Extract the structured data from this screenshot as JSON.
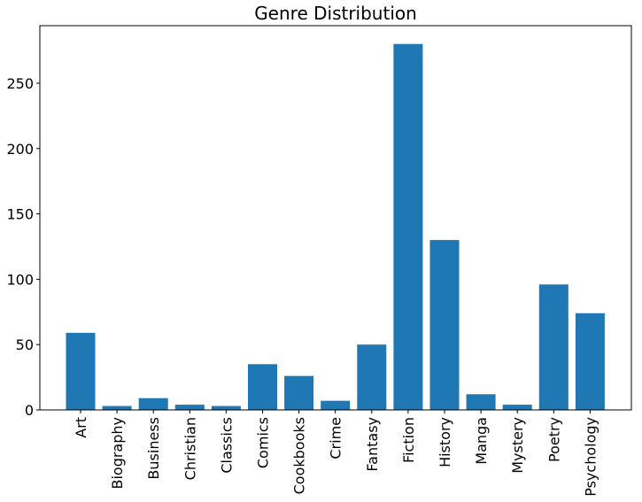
{
  "chart_data": {
    "type": "bar",
    "title": "Genre Distribution",
    "xlabel": "",
    "ylabel": "",
    "categories": [
      "Art",
      "Biography",
      "Business",
      "Christian",
      "Classics",
      "Comics",
      "Cookbooks",
      "Crime",
      "Fantasy",
      "Fiction",
      "History",
      "Manga",
      "Mystery",
      "Poetry",
      "Psychology"
    ],
    "values": [
      59,
      3,
      9,
      4,
      3,
      35,
      26,
      7,
      50,
      280,
      130,
      12,
      4,
      96,
      74
    ],
    "ylim": [
      0,
      294
    ],
    "yticks": [
      0,
      50,
      100,
      150,
      200,
      250
    ],
    "grid": false,
    "bar_color": "#1f77b4"
  }
}
